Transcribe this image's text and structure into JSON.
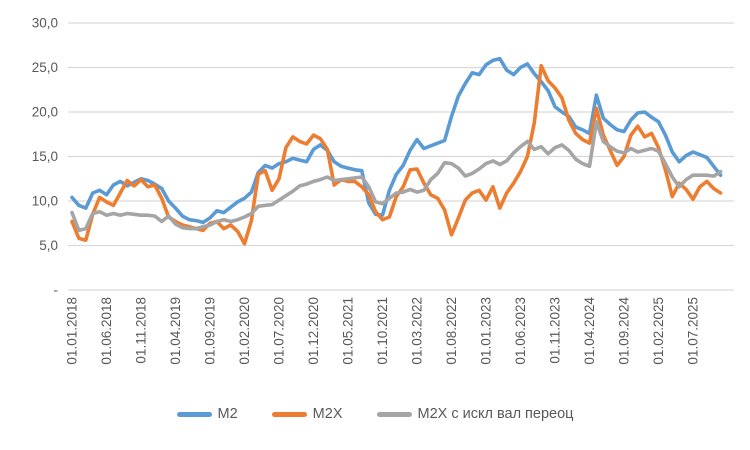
{
  "chart_data": {
    "type": "line",
    "title": "",
    "grid": true,
    "legend_position": "bottom",
    "ylim": [
      0,
      30
    ],
    "y_tick_step": 5,
    "y_tick_labels": [
      "-",
      "5,0",
      "10,0",
      "15,0",
      "20,0",
      "25,0",
      "30,0"
    ],
    "x_tick_every": 5,
    "x": [
      "01.01.2018",
      "01.02.2018",
      "01.03.2018",
      "01.04.2018",
      "01.05.2018",
      "01.06.2018",
      "01.07.2018",
      "01.08.2018",
      "01.09.2018",
      "01.10.2018",
      "01.11.2018",
      "01.12.2018",
      "01.01.2019",
      "01.02.2019",
      "01.03.2019",
      "01.04.2019",
      "01.05.2019",
      "01.06.2019",
      "01.07.2019",
      "01.08.2019",
      "01.09.2019",
      "01.10.2019",
      "01.11.2019",
      "01.12.2019",
      "01.01.2020",
      "01.02.2020",
      "01.03.2020",
      "01.04.2020",
      "01.05.2020",
      "01.06.2020",
      "01.07.2020",
      "01.08.2020",
      "01.09.2020",
      "01.10.2020",
      "01.11.2020",
      "01.12.2020",
      "01.01.2021",
      "01.02.2021",
      "01.03.2021",
      "01.04.2021",
      "01.05.2021",
      "01.06.2021",
      "01.07.2021",
      "01.08.2021",
      "01.09.2021",
      "01.10.2021",
      "01.11.2021",
      "01.12.2021",
      "01.01.2022",
      "01.02.2022",
      "01.03.2022",
      "01.04.2022",
      "01.05.2022",
      "01.06.2022",
      "01.07.2022",
      "01.08.2022",
      "01.09.2022",
      "01.10.2022",
      "01.11.2022",
      "01.12.2022",
      "01.01.2023",
      "01.02.2023",
      "01.03.2023",
      "01.04.2023",
      "01.05.2023",
      "01.06.2023",
      "01.07.2023",
      "01.08.2023",
      "01.09.2023",
      "01.10.2023",
      "01.11.2023",
      "01.12.2023",
      "01.01.2024",
      "01.02.2024",
      "01.03.2024",
      "01.04.2024",
      "01.05.2024",
      "01.06.2024",
      "01.07.2024",
      "01.08.2024",
      "01.09.2024",
      "01.10.2024",
      "01.11.2024",
      "01.12.2024",
      "01.01.2025",
      "01.02.2025",
      "01.03.2025",
      "01.04.2025",
      "01.05.2025",
      "01.06.2025",
      "01.07.2025",
      "01.08.2025",
      "01.09.2025",
      "01.10.2025",
      "01.11.2025"
    ],
    "series": [
      {
        "name": "М2",
        "color": "#5B9BD5",
        "values": [
          10.4,
          9.5,
          9.2,
          10.9,
          11.2,
          10.7,
          11.8,
          12.2,
          11.7,
          12.1,
          12.5,
          12.3,
          11.9,
          11.4,
          10.0,
          9.2,
          8.3,
          7.9,
          7.8,
          7.6,
          8.1,
          8.9,
          8.7,
          9.3,
          9.9,
          10.3,
          11.0,
          13.2,
          14.0,
          13.7,
          14.2,
          14.4,
          14.8,
          14.6,
          14.4,
          15.8,
          16.3,
          15.7,
          14.4,
          13.9,
          13.7,
          13.5,
          13.4,
          9.8,
          8.5,
          8.4,
          11.2,
          13.0,
          14.0,
          15.7,
          16.9,
          15.9,
          16.2,
          16.5,
          16.8,
          19.5,
          21.8,
          23.2,
          24.4,
          24.2,
          25.3,
          25.8,
          26.0,
          24.7,
          24.2,
          25.0,
          25.4,
          24.3,
          23.4,
          22.4,
          20.6,
          20.0,
          19.5,
          18.3,
          18.0,
          17.6,
          21.9,
          19.3,
          18.6,
          18.0,
          17.8,
          19.1,
          19.9,
          20.0,
          19.4,
          18.9,
          17.4,
          15.5,
          14.4,
          15.1,
          15.5,
          15.2,
          14.9,
          13.9,
          12.9
        ]
      },
      {
        "name": "М2Х",
        "color": "#ED7D31",
        "values": [
          7.7,
          5.8,
          5.6,
          8.5,
          10.4,
          9.9,
          9.5,
          10.9,
          12.3,
          11.7,
          12.4,
          11.6,
          11.8,
          10.3,
          8.2,
          7.7,
          7.3,
          7.1,
          6.9,
          6.7,
          7.5,
          7.7,
          6.9,
          7.3,
          6.6,
          5.2,
          7.8,
          13.0,
          13.4,
          11.2,
          12.5,
          16.0,
          17.2,
          16.7,
          16.4,
          17.4,
          17.0,
          15.8,
          11.8,
          12.4,
          12.2,
          12.2,
          11.6,
          10.7,
          8.8,
          7.9,
          8.2,
          10.5,
          11.6,
          13.5,
          13.6,
          12.0,
          10.7,
          10.3,
          9.0,
          6.2,
          8.1,
          10.1,
          10.9,
          11.2,
          10.1,
          11.6,
          9.2,
          10.9,
          12.0,
          13.3,
          15.0,
          18.8,
          25.2,
          23.5,
          22.7,
          21.6,
          19.1,
          17.6,
          16.9,
          16.5,
          20.4,
          17.4,
          15.7,
          14.0,
          15.0,
          17.4,
          18.4,
          17.2,
          17.6,
          16.0,
          13.5,
          10.5,
          12.0,
          11.3,
          10.2,
          11.6,
          12.2,
          11.4,
          10.9
        ]
      },
      {
        "name": "М2Х с искл вал переоц",
        "color": "#A5A5A5",
        "values": [
          8.7,
          6.7,
          6.9,
          8.6,
          8.8,
          8.4,
          8.6,
          8.4,
          8.6,
          8.5,
          8.4,
          8.4,
          8.3,
          7.7,
          8.3,
          7.4,
          7.0,
          6.9,
          6.9,
          7.1,
          7.3,
          7.7,
          7.9,
          7.7,
          7.9,
          8.2,
          8.6,
          9.4,
          9.5,
          9.6,
          10.1,
          10.6,
          11.1,
          11.7,
          11.9,
          12.2,
          12.4,
          12.7,
          12.3,
          12.4,
          12.5,
          12.6,
          12.7,
          11.6,
          9.9,
          9.7,
          10.3,
          10.9,
          11.0,
          11.3,
          11.0,
          11.2,
          12.4,
          13.1,
          14.3,
          14.2,
          13.7,
          12.8,
          13.1,
          13.6,
          14.2,
          14.5,
          14.1,
          14.5,
          15.4,
          16.1,
          16.7,
          15.8,
          16.1,
          15.3,
          16.0,
          16.3,
          15.7,
          14.7,
          14.2,
          13.9,
          18.9,
          16.7,
          16.1,
          15.6,
          15.4,
          15.9,
          15.5,
          15.7,
          15.9,
          15.6,
          14.2,
          12.7,
          11.6,
          12.4,
          12.9,
          12.9,
          12.9,
          12.8,
          13.3
        ]
      }
    ],
    "colors": {
      "gridline": "#D9D9D9",
      "axis_text": "#595959",
      "background": "#FFFFFF"
    }
  }
}
